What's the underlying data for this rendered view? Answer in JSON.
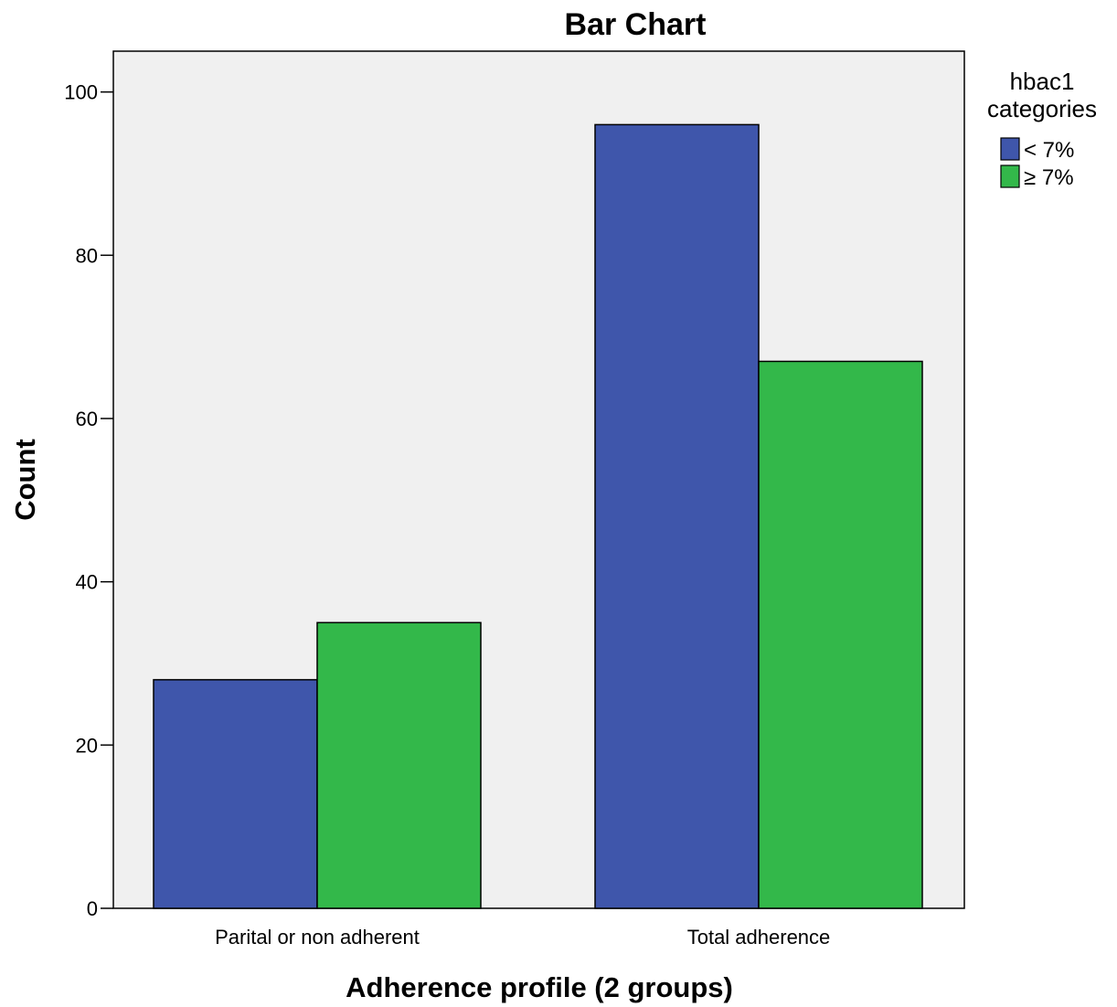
{
  "chart_data": {
    "type": "bar",
    "title": "Bar Chart",
    "xlabel": "Adherence profile (2 groups)",
    "ylabel": "Count",
    "categories": [
      "Parital or non adherent",
      "Total adherence"
    ],
    "series": [
      {
        "name": "< 7%",
        "values": [
          28,
          96
        ],
        "color": "#3f56ab"
      },
      {
        "name": "≥ 7%",
        "values": [
          35,
          67
        ],
        "color": "#33b84a"
      }
    ],
    "ylim": [
      0,
      105
    ],
    "yticks": [
      0,
      20,
      40,
      60,
      80,
      100
    ],
    "grid": false,
    "plot_background": "#f0f0f0",
    "legend": {
      "title_lines": [
        "hbac1",
        "categories"
      ],
      "placement": "right"
    }
  }
}
